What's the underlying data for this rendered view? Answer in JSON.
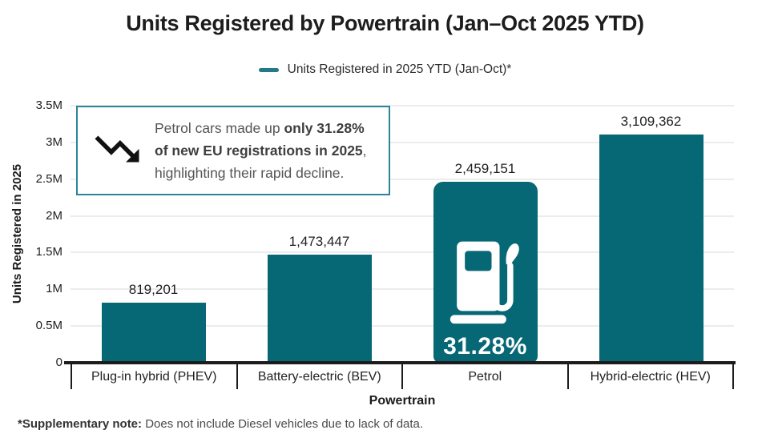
{
  "title": "Units Registered by Powertrain (Jan–Oct 2025 YTD)",
  "legend": {
    "label": "Units Registered in 2025 YTD (Jan-Oct)*",
    "swatch_color": "#23798a"
  },
  "chart_data": {
    "type": "bar",
    "title": "Units Registered by Powertrain (Jan–Oct 2025 YTD)",
    "categories": [
      "Plug-in hybrid (PHEV)",
      "Battery-electric (BEV)",
      "Petrol",
      "Hybrid-electric (HEV)"
    ],
    "values": [
      819201,
      1473447,
      2459151,
      3109362
    ],
    "value_labels": [
      "819,201",
      "1,473,447",
      "2,459,151",
      "3,109,362"
    ],
    "xlabel": "Powertrain",
    "ylabel": "Units Registered in 2025",
    "ylim": [
      0,
      3500000
    ],
    "yticks": [
      {
        "label": "0",
        "value": 0
      },
      {
        "label": "0.5M",
        "value": 500000
      },
      {
        "label": "1M",
        "value": 1000000
      },
      {
        "label": "1.5M",
        "value": 1500000
      },
      {
        "label": "2M",
        "value": 2000000
      },
      {
        "label": "2.5M",
        "value": 2500000
      },
      {
        "label": "3M",
        "value": 3000000
      },
      {
        "label": "3.5M",
        "value": 3500000
      }
    ],
    "grid": true,
    "legend_position": "top",
    "bar_color": "#066775",
    "highlight": {
      "category": "Petrol",
      "icon": "fuel-pump-icon",
      "label": "31.28%"
    }
  },
  "annotation": {
    "icon": "trending-down-icon",
    "l1_normal": "Petrol cars made up ",
    "l1_bold": "only 31.28%",
    "l2_bold": "of new EU registrations in 2025",
    "l2_normal": ",",
    "l3": "highlighting their rapid decline."
  },
  "footnote": {
    "bold": "*Supplementary note:",
    "text": " Does not include Diesel vehicles due to lack of data."
  }
}
